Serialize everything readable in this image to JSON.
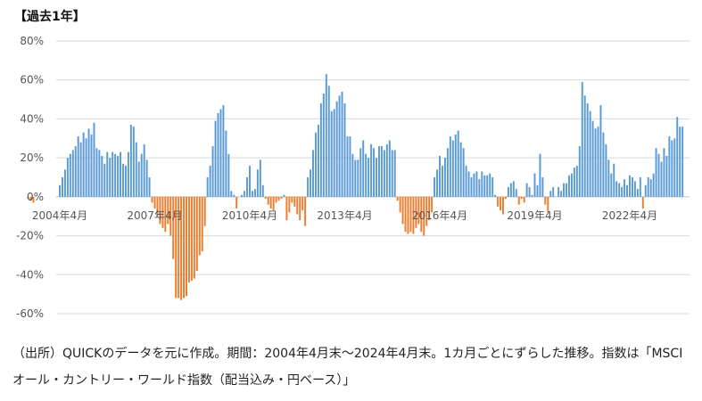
{
  "chart_title": "【過去1年】",
  "caption": "（出所）QUICKのデータを元に作成。期間：2004年4月末～2024年4月末。1カ月ごとにずらした推移。指数は「MSCIオール・カントリー・ワールド指数（配当込み・円ベース）」",
  "colors": {
    "positive": "#5b9bd5",
    "negative": "#ed7d31",
    "grid": "#d9d9d9"
  },
  "chart_data": {
    "type": "bar",
    "title": "【過去1年】",
    "xlabel": "",
    "ylabel": "",
    "ylim": [
      -60,
      80
    ],
    "yticks": [
      "80%",
      "60%",
      "40%",
      "20%",
      "0%",
      "-20%",
      "-40%",
      "-60%"
    ],
    "ytick_values": [
      80,
      60,
      40,
      20,
      0,
      -20,
      -40,
      -60
    ],
    "xticks": [
      "2004年4月",
      "2007年4月",
      "2010年4月",
      "2013年4月",
      "2016年4月",
      "2019年4月",
      "2022年4月"
    ],
    "grid": true,
    "legend": "none",
    "start_label": "2004年4月",
    "values": [
      -1,
      -2,
      -3,
      0,
      0,
      0,
      0,
      0,
      0,
      0,
      0,
      0,
      6,
      10,
      14,
      20,
      22,
      24,
      26,
      31,
      28,
      33,
      30,
      35,
      32,
      38,
      25,
      24,
      21,
      17,
      23,
      20,
      23,
      22,
      21,
      23,
      17,
      16,
      23,
      37,
      36,
      28,
      18,
      22,
      27,
      19,
      10,
      -3,
      -6,
      -10,
      -14,
      -16,
      -18,
      -14,
      -20,
      -32,
      -52,
      -52,
      -53,
      -52,
      -51,
      -44,
      -43,
      -42,
      -38,
      -30,
      -28,
      -15,
      10,
      16,
      26,
      39,
      43,
      45,
      47,
      34,
      22,
      3,
      1,
      -6,
      0,
      1,
      3,
      10,
      16,
      3,
      4,
      14,
      19,
      6,
      -1,
      -4,
      -6,
      -7,
      -3,
      -2,
      -1,
      1,
      -12,
      -8,
      -3,
      -5,
      -9,
      -12,
      -7,
      -15,
      10,
      14,
      24,
      33,
      37,
      48,
      53,
      63,
      57,
      44,
      45,
      49,
      52,
      54,
      48,
      31,
      31,
      22,
      19,
      19,
      25,
      29,
      22,
      20,
      27,
      25,
      20,
      26,
      26,
      24,
      27,
      29,
      24,
      24,
      -2,
      -8,
      -14,
      -18,
      -19,
      -18,
      -19,
      -16,
      -14,
      -18,
      -20,
      -15,
      -12,
      -8,
      10,
      14,
      21,
      16,
      20,
      25,
      31,
      29,
      32,
      34,
      28,
      25,
      16,
      13,
      10,
      12,
      13,
      9,
      13,
      11,
      11,
      12,
      10,
      1,
      -5,
      -7,
      -9,
      -1,
      5,
      7,
      8,
      4,
      -4,
      -1,
      -3,
      7,
      5,
      1,
      12,
      6,
      22,
      10,
      -4,
      -8,
      3,
      5,
      0,
      5,
      3,
      7,
      7,
      11,
      12,
      15,
      16,
      26,
      59,
      52,
      48,
      44,
      39,
      35,
      36,
      47,
      33,
      27,
      19,
      12,
      17,
      8,
      7,
      5,
      9,
      6,
      11,
      10,
      8,
      4,
      10,
      -6,
      6,
      10,
      9,
      12,
      25,
      22,
      18,
      25,
      21,
      31,
      29,
      30,
      41,
      36,
      36
    ]
  }
}
